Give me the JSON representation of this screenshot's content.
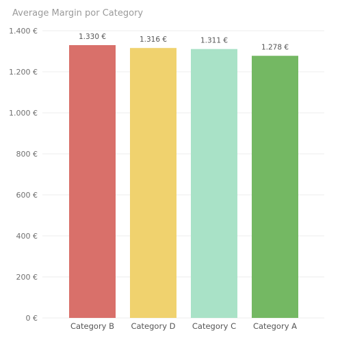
{
  "chart_data": {
    "type": "bar",
    "title": "Average Margin por Category",
    "xlabel": "",
    "ylabel": "",
    "categories": [
      "Category B",
      "Category D",
      "Category C",
      "Category A"
    ],
    "values": [
      1330,
      1316,
      1311,
      1278
    ],
    "data_labels": [
      "1.330 €",
      "1.316 €",
      "1.311 €",
      "1.278 €"
    ],
    "colors": [
      "#d9706a",
      "#f0d26e",
      "#a9e2c7",
      "#74b863"
    ],
    "yticks": [
      0,
      200,
      400,
      600,
      800,
      1000,
      1200,
      1400
    ],
    "ytick_labels": [
      "0 €",
      "200 €",
      "400 €",
      "600 €",
      "800 €",
      "1.000 €",
      "1.200 €",
      "1.400 €"
    ],
    "ylim": [
      0,
      1400
    ],
    "grid": true,
    "gridline_color": "#eeeeee",
    "legend": "none"
  }
}
